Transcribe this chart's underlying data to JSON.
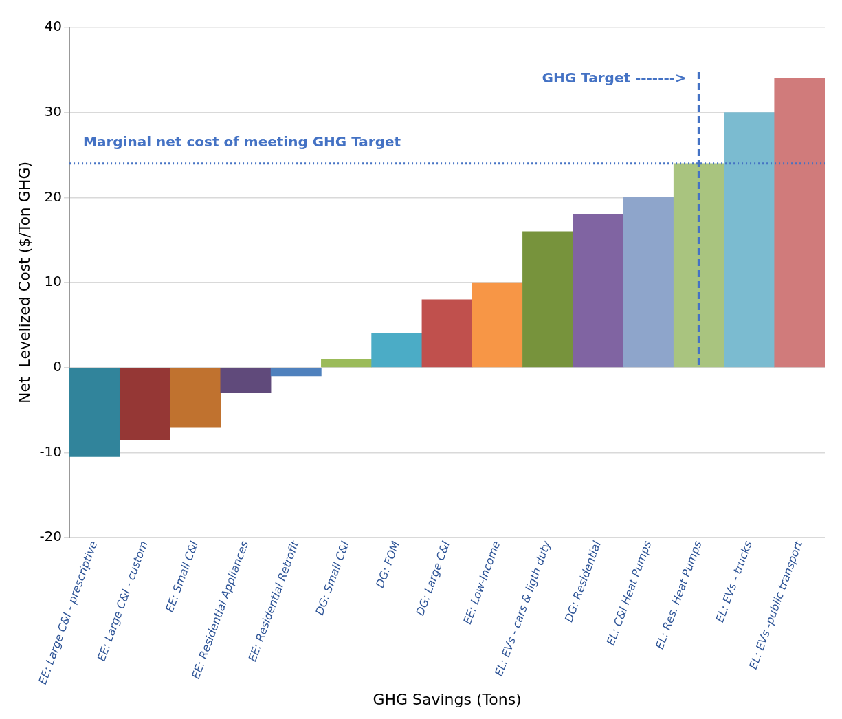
{
  "chart_data": {
    "type": "bar",
    "xlabel": "GHG Savings (Tons)",
    "ylabel": "Net  Levelized Cost ($/Ton GHG)",
    "categories": [
      "EE: Large C&I - prescriptive",
      "EE: Large C&I - custom",
      "EE: Small C&I",
      "EE: Residential Appliances",
      "EE: Residential Retrofit",
      "DG: Small C&I",
      "DG: FOM",
      "DG: Large C&I",
      "EE: Low-Income",
      "EL: EVs - cars & ligth duty",
      "DG: Residential",
      "EL: C&I Heat Pumps",
      "EL: Res. Heat Pumps",
      "EL: EVs - trucks",
      "EL: EVs -public transport"
    ],
    "values": [
      -10.5,
      -8.5,
      -7,
      -3,
      -1,
      1,
      4,
      8,
      10,
      16,
      18,
      20,
      24,
      30,
      34
    ],
    "colors": [
      "#31849b",
      "#953735",
      "#c0722f",
      "#604a7b",
      "#4f81bd",
      "#9bbb59",
      "#4bacc6",
      "#c0504d",
      "#f79646",
      "#77933c",
      "#8064a2",
      "#8ea5cb",
      "#a9c47f",
      "#7bbbd0",
      "#d07b7b"
    ],
    "ylim": [
      -20,
      40
    ],
    "yticks": [
      -20,
      -10,
      0,
      10,
      20,
      30,
      40
    ],
    "grid": "y",
    "ref_lines": [
      {
        "axis": "y",
        "value": 24,
        "label": "Marginal net cost of meeting GHG Target",
        "color": "#4472c4",
        "line_style": "dotted"
      },
      {
        "axis": "x",
        "value": "EL: Res. Heat Pumps",
        "label": "GHG Target ------->",
        "color": "#4472c4",
        "line_style": "dashed"
      }
    ]
  }
}
